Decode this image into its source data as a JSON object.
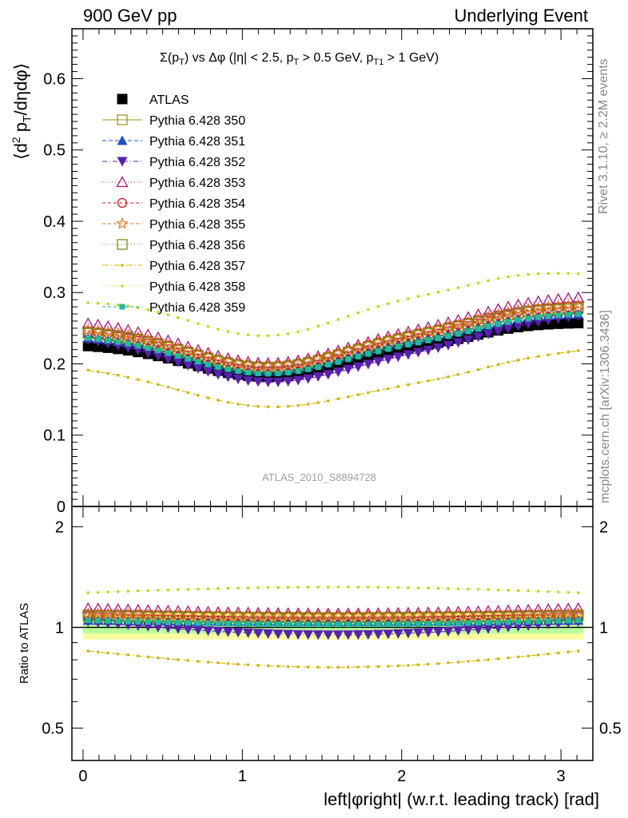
{
  "header": {
    "left": "900 GeV pp",
    "right": "Underlying Event"
  },
  "side_labels": {
    "rivet": "Rivet 3.1.10, ≥ 2.2M events",
    "mcplots": "mcplots.cern.ch [arXiv:1306.3436]"
  },
  "chart_data": {
    "type": "scatter",
    "title_parts": {
      "t1": "Σ(p",
      "s1": "T",
      "t2": ") vs Δφ (|η| < 2.5, p",
      "s2": "T",
      "t3": " > 0.5 GeV, p",
      "s3": "T1",
      "t4": " > 1 GeV)"
    },
    "analysis_tag": "ATLAS_2010_S8894728",
    "xlabel": "left|φright| (w.r.t. leading track) [rad]",
    "ylabel_parts": {
      "a": "⟨d",
      "b": "2",
      "c": " p",
      "d": "T",
      "e": "/dηdφ⟩"
    },
    "ratio_ylabel": "Ratio to ATLAS",
    "xlim": [
      -0.07,
      3.2
    ],
    "ylim": [
      0,
      0.67
    ],
    "ratio_ylim": [
      0.4,
      2.3
    ],
    "ratio_scale": "log",
    "xticks": [
      "0",
      "1",
      "2",
      "3"
    ],
    "yticks": [
      "0",
      "0.1",
      "0.2",
      "0.3",
      "0.4",
      "0.5",
      "0.6"
    ],
    "ratio_yticks": [
      "0.5",
      "1",
      "2"
    ],
    "n_points": 50,
    "x_start": 0.0314,
    "x_step": 0.0628,
    "data_shape": {
      "base": 0.228,
      "dip": 0.046,
      "dip_center": 1.15,
      "dip_width": 0.68,
      "rise": 0.03,
      "rise_center": 2.5,
      "rise_width": 0.35
    },
    "legend_placement": "top-left",
    "series": [
      {
        "name": "ATLAS",
        "color": "#000000",
        "marker": "square-filled",
        "dash": "",
        "ratio": [
          1.0,
          1.0
        ]
      },
      {
        "name": "Pythia 6.428 350",
        "color": "#9a9a1e",
        "marker": "square-open",
        "dash": "",
        "ratio": [
          1.09,
          1.07
        ]
      },
      {
        "name": "Pythia 6.428 351",
        "color": "#1f50c8",
        "marker": "triangle-filled",
        "dash": "5,3",
        "ratio": [
          1.05,
          1.04
        ]
      },
      {
        "name": "Pythia 6.428 352",
        "color": "#5a1fb4",
        "marker": "triangle-down-filled",
        "dash": "6,3,1,3",
        "ratio": [
          1.04,
          0.95
        ]
      },
      {
        "name": "Pythia 6.428 353",
        "color": "#b40f78",
        "marker": "triangle-open",
        "dash": "1,3",
        "ratio": [
          1.14,
          1.1
        ]
      },
      {
        "name": "Pythia 6.428 354",
        "color": "#dc1414",
        "marker": "circle-open",
        "dash": "4,3",
        "ratio": [
          1.09,
          1.08
        ]
      },
      {
        "name": "Pythia 6.428 355",
        "color": "#f0731e",
        "marker": "star-open",
        "dash": "4,3",
        "ratio": [
          1.1,
          1.08
        ]
      },
      {
        "name": "Pythia 6.428 356",
        "color": "#7a8a14",
        "marker": "square-open",
        "dash": "1,3",
        "ratio": [
          1.08,
          1.07
        ]
      },
      {
        "name": "Pythia 6.428 357",
        "color": "#d2b400",
        "marker": "dot",
        "dash": "8,3,1,3",
        "ratio": [
          0.85,
          0.76
        ]
      },
      {
        "name": "Pythia 6.428 358",
        "color": "#b4dc1e",
        "marker": "dot",
        "dash": "1,3",
        "ratio": [
          1.27,
          1.32
        ]
      },
      {
        "name": "Pythia 6.428 359",
        "color": "#1ebe96",
        "marker": "square-filled-small",
        "dash": "4,3",
        "ratio": [
          1.05,
          1.02
        ]
      }
    ]
  }
}
